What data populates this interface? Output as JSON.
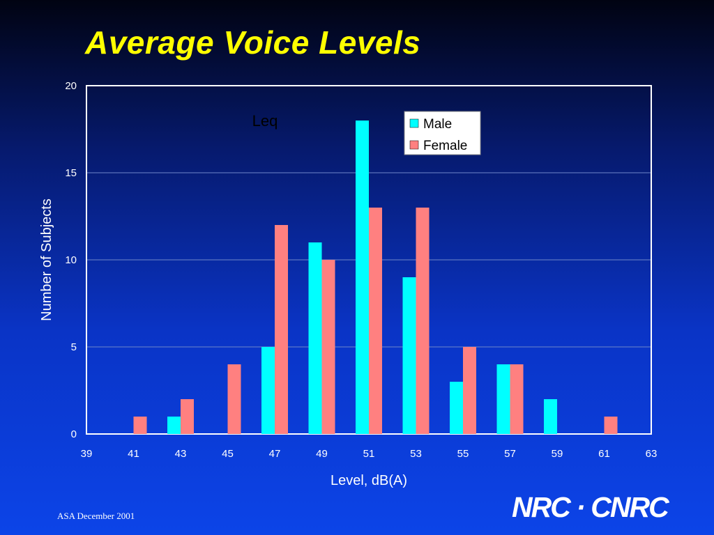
{
  "slide": {
    "title": "Average Voice Levels",
    "footer": "ASA December 2001",
    "logo_text": "NRC · CNRC"
  },
  "colors": {
    "male": "#00ffff",
    "female": "#ff8080",
    "title": "#ffff00",
    "axis": "#ffffff",
    "gridline": "#6f86c9"
  },
  "chart_data": {
    "type": "bar",
    "title": "",
    "annotation": "Leq",
    "xlabel": "Level, dB(A)",
    "ylabel": "Number of Subjects",
    "xlim": [
      39,
      63
    ],
    "ylim": [
      0,
      20
    ],
    "x_ticks": [
      39,
      41,
      43,
      45,
      47,
      49,
      51,
      53,
      55,
      57,
      59,
      61,
      63
    ],
    "y_ticks": [
      0,
      5,
      10,
      15,
      20
    ],
    "grid": true,
    "legend_position": "top-right",
    "categories": [
      41,
      43,
      45,
      47,
      49,
      51,
      53,
      55,
      57,
      59,
      61
    ],
    "series": [
      {
        "name": "Male",
        "values": [
          0,
          1,
          0,
          5,
          11,
          18,
          9,
          3,
          4,
          2,
          0
        ]
      },
      {
        "name": "Female",
        "values": [
          1,
          2,
          4,
          12,
          10,
          13,
          13,
          5,
          4,
          0,
          1
        ]
      }
    ]
  }
}
